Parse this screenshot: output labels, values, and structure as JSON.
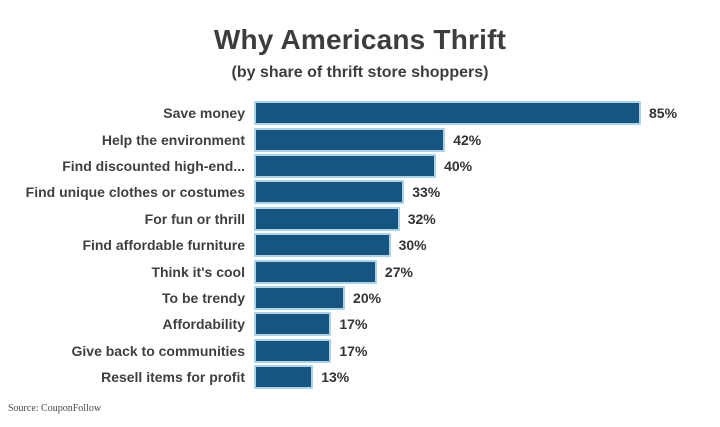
{
  "chart_data": {
    "type": "bar",
    "orientation": "horizontal",
    "title": "Why Americans Thrift",
    "subtitle": "(by share of thrift store shoppers)",
    "categories": [
      "Save money",
      "Help the environment",
      "Find discounted high-end...",
      "Find unique clothes or costumes",
      "For fun or thrill",
      "Find affordable furniture",
      "Think it's cool",
      "To be trendy",
      "Affordability",
      "Give back to communities",
      "Resell items for profit"
    ],
    "values": [
      85,
      42,
      40,
      33,
      32,
      30,
      27,
      20,
      17,
      17,
      13
    ],
    "value_suffix": "%",
    "xlim": [
      0,
      100
    ],
    "grid": false,
    "legend": "none",
    "data_labels": true,
    "bar_color": "#165481",
    "bar_border_color": "#abd3e8",
    "text_color": "#3d3d3d"
  },
  "source": "Source: CouponFollow"
}
